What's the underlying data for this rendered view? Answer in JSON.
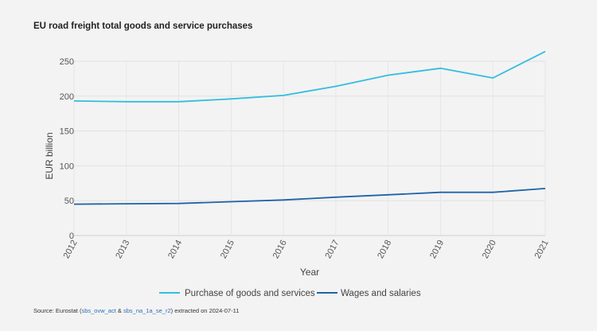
{
  "chart_data": {
    "type": "line",
    "title": "EU road freight total goods and service purchases",
    "xlabel": "Year",
    "ylabel": "EUR billion",
    "x": [
      "2012",
      "2013",
      "2014",
      "2015",
      "2016",
      "2017",
      "2018",
      "2019",
      "2020",
      "2021"
    ],
    "ylim": [
      0,
      275
    ],
    "yticks": [
      0,
      50,
      100,
      150,
      200,
      250
    ],
    "grid": true,
    "legend_position": "bottom",
    "series": [
      {
        "name": "Purchase of goods and services",
        "color": "#33bde0",
        "values": [
          193,
          192,
          192,
          196,
          201,
          214,
          230,
          240,
          226,
          264
        ]
      },
      {
        "name": "Wages and salaries",
        "color": "#1f63a8",
        "values": [
          45,
          45.5,
          46,
          48.5,
          51,
          55,
          58.5,
          62,
          62,
          67.5
        ]
      }
    ]
  },
  "source": {
    "prefix": "Source: Eurostat (",
    "code1": "sbs_ovw_act",
    "amp": " & ",
    "code2": "sbs_na_1a_se_r2",
    "suffix": ") extracted on 2024-07-11"
  }
}
